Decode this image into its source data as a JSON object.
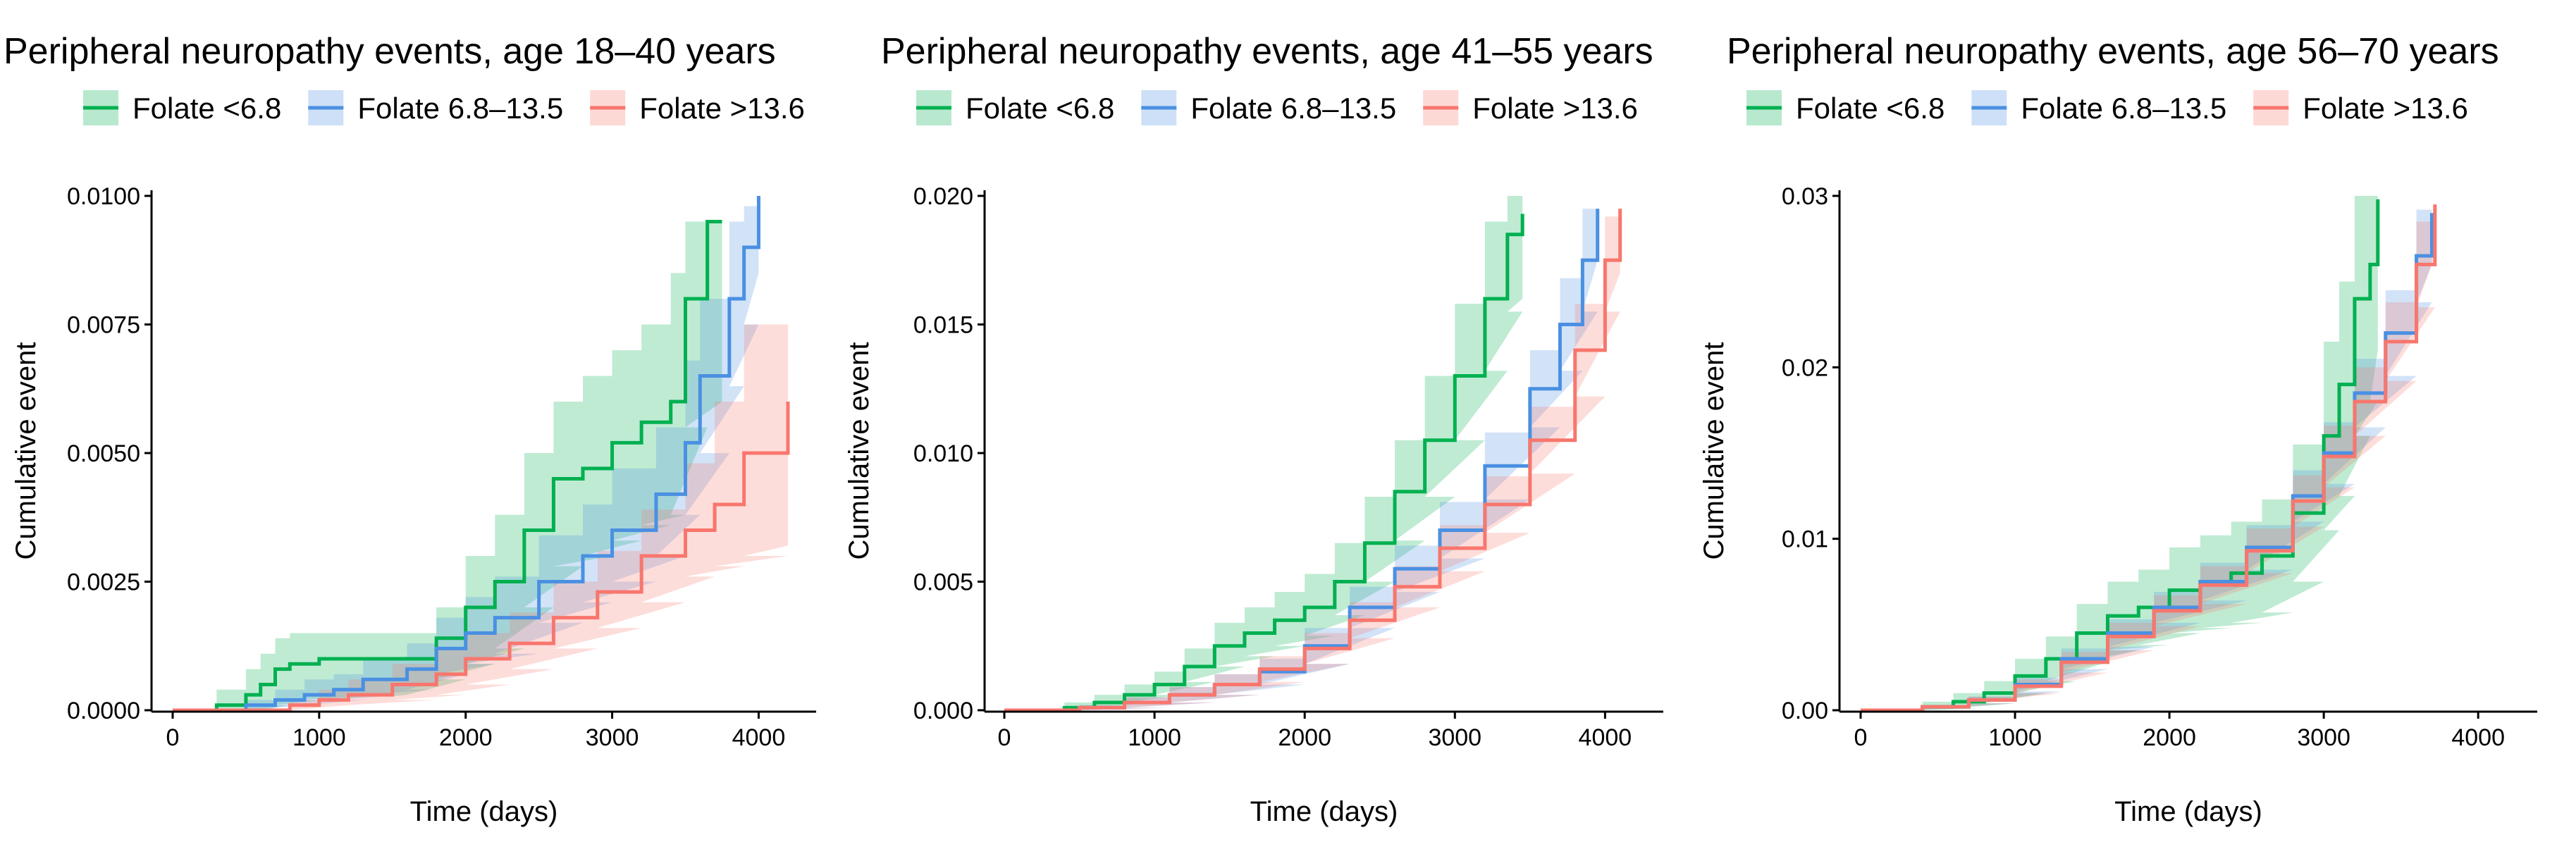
{
  "colors": {
    "folate_low": "#00b050",
    "folate_mid": "#4a90e2",
    "folate_high": "#f8766d"
  },
  "chart_data": [
    {
      "type": "line",
      "title": "Peripheral neuropathy events, age 18–40 years",
      "xlabel": "Time (days)",
      "ylabel": "Cumulative event",
      "xlim": [
        0,
        4200
      ],
      "ylim": [
        0,
        0.01
      ],
      "xticks": [
        0,
        1000,
        2000,
        3000,
        4000
      ],
      "xtick_labels": [
        "0",
        "1000",
        "2000",
        "3000",
        "4000"
      ],
      "yticks": [
        0,
        0.0025,
        0.005,
        0.0075,
        0.01
      ],
      "ytick_labels": [
        "0.0000",
        "0.0025",
        "0.0050",
        "0.0075",
        "0.0100"
      ],
      "series": [
        {
          "name": "Folate <6.8",
          "color": "#00b050",
          "x": [
            0,
            300,
            500,
            600,
            700,
            800,
            1000,
            1600,
            1800,
            2000,
            2200,
            2400,
            2600,
            2800,
            3000,
            3200,
            3400,
            3500,
            3650,
            3750
          ],
          "y": [
            0,
            0.0001,
            0.0003,
            0.0005,
            0.0008,
            0.0009,
            0.001,
            0.001,
            0.0014,
            0.002,
            0.0025,
            0.0035,
            0.0045,
            0.0047,
            0.0052,
            0.0056,
            0.006,
            0.008,
            0.0095,
            0.0095
          ],
          "upper": [
            0,
            0.0004,
            0.0008,
            0.0011,
            0.0014,
            0.0015,
            0.0015,
            0.0015,
            0.002,
            0.003,
            0.0038,
            0.005,
            0.006,
            0.0065,
            0.007,
            0.0075,
            0.0085,
            0.0095,
            0.0095,
            0.0095
          ],
          "lower": [
            0,
            0,
            0,
            0,
            0.0001,
            0.0002,
            0.0003,
            0.0003,
            0.0006,
            0.0009,
            0.0012,
            0.002,
            0.0028,
            0.003,
            0.0033,
            0.0036,
            0.0038,
            0.0055,
            0.006,
            0.006
          ]
        },
        {
          "name": "Folate 6.8–13.5",
          "color": "#4a90e2",
          "x": [
            0,
            500,
            700,
            900,
            1100,
            1300,
            1600,
            1800,
            2000,
            2200,
            2500,
            2800,
            3000,
            3300,
            3500,
            3600,
            3800,
            3900,
            4000
          ],
          "y": [
            0,
            0.0001,
            0.0002,
            0.0003,
            0.0004,
            0.0006,
            0.0008,
            0.0012,
            0.0015,
            0.0018,
            0.0025,
            0.003,
            0.0035,
            0.0042,
            0.0052,
            0.0065,
            0.008,
            0.009,
            0.01
          ],
          "upper": [
            0,
            0.0002,
            0.0004,
            0.0006,
            0.0007,
            0.001,
            0.0013,
            0.0018,
            0.0022,
            0.0026,
            0.0034,
            0.004,
            0.0047,
            0.0055,
            0.0068,
            0.008,
            0.0095,
            0.0098,
            0.01
          ],
          "lower": [
            0,
            0,
            0.0001,
            0.0001,
            0.0002,
            0.0003,
            0.0004,
            0.0007,
            0.0009,
            0.0011,
            0.0017,
            0.0021,
            0.0025,
            0.003,
            0.0038,
            0.005,
            0.0063,
            0.0075,
            0.0085
          ]
        },
        {
          "name": "Folate >13.6",
          "color": "#f8766d",
          "x": [
            0,
            800,
            1000,
            1200,
            1500,
            1800,
            2000,
            2300,
            2600,
            2900,
            3200,
            3500,
            3700,
            3900,
            4200
          ],
          "y": [
            0,
            0.0001,
            0.0002,
            0.0003,
            0.0005,
            0.0007,
            0.001,
            0.0013,
            0.0018,
            0.0023,
            0.003,
            0.0035,
            0.004,
            0.005,
            0.006
          ],
          "upper": [
            0,
            0.0002,
            0.0004,
            0.0006,
            0.0009,
            0.0012,
            0.0015,
            0.0019,
            0.0025,
            0.0031,
            0.0039,
            0.0048,
            0.006,
            0.0075,
            0.0088
          ],
          "lower": [
            0,
            0,
            0.0001,
            0.0001,
            0.0002,
            0.0003,
            0.0005,
            0.0008,
            0.0012,
            0.0016,
            0.0021,
            0.0026,
            0.0028,
            0.003,
            0.0032
          ]
        }
      ]
    },
    {
      "type": "line",
      "title": "Peripheral neuropathy events, age 41–55 years",
      "xlabel": "Time (days)",
      "ylabel": "Cumulative event",
      "xlim": [
        0,
        4200
      ],
      "ylim": [
        0,
        0.02
      ],
      "xticks": [
        0,
        1000,
        2000,
        3000,
        4000
      ],
      "xtick_labels": [
        "0",
        "1000",
        "2000",
        "3000",
        "4000"
      ],
      "yticks": [
        0,
        0.005,
        0.01,
        0.015,
        0.02
      ],
      "ytick_labels": [
        "0.000",
        "0.005",
        "0.010",
        "0.015",
        "0.020"
      ],
      "series": [
        {
          "name": "Folate <6.8",
          "color": "#00b050",
          "x": [
            0,
            400,
            600,
            800,
            1000,
            1200,
            1400,
            1600,
            1800,
            2000,
            2200,
            2400,
            2600,
            2800,
            3000,
            3200,
            3350,
            3450
          ],
          "y": [
            0,
            0.0001,
            0.0003,
            0.0006,
            0.001,
            0.0017,
            0.0025,
            0.003,
            0.0035,
            0.004,
            0.005,
            0.0065,
            0.0085,
            0.0105,
            0.013,
            0.016,
            0.0185,
            0.0193
          ],
          "upper": [
            0,
            0.0003,
            0.0006,
            0.001,
            0.0015,
            0.0024,
            0.0034,
            0.004,
            0.0046,
            0.0053,
            0.0065,
            0.0083,
            0.0105,
            0.013,
            0.0158,
            0.019,
            0.02,
            0.02
          ],
          "lower": [
            0,
            0,
            0.0001,
            0.0003,
            0.0006,
            0.0011,
            0.0017,
            0.0021,
            0.0025,
            0.0029,
            0.0037,
            0.005,
            0.0066,
            0.0083,
            0.0105,
            0.0132,
            0.0155,
            0.016
          ]
        },
        {
          "name": "Folate 6.8–13.5",
          "color": "#4a90e2",
          "x": [
            0,
            500,
            800,
            1100,
            1400,
            1700,
            2000,
            2300,
            2600,
            2900,
            3200,
            3500,
            3700,
            3850,
            3950
          ],
          "y": [
            0,
            0.0001,
            0.0003,
            0.0006,
            0.001,
            0.0015,
            0.0025,
            0.004,
            0.0055,
            0.007,
            0.0095,
            0.0125,
            0.015,
            0.0175,
            0.0195
          ],
          "upper": [
            0,
            0.0002,
            0.0005,
            0.0009,
            0.0014,
            0.002,
            0.0032,
            0.0048,
            0.0064,
            0.0081,
            0.0108,
            0.014,
            0.0168,
            0.0195,
            0.02
          ],
          "lower": [
            0,
            0,
            0.0001,
            0.0003,
            0.0006,
            0.001,
            0.0018,
            0.0032,
            0.0046,
            0.0059,
            0.0082,
            0.011,
            0.0132,
            0.0155,
            0.0175
          ]
        },
        {
          "name": "Folate >13.6",
          "color": "#f8766d",
          "x": [
            0,
            500,
            800,
            1100,
            1400,
            1700,
            2000,
            2300,
            2600,
            2900,
            3200,
            3500,
            3800,
            4000,
            4100
          ],
          "y": [
            0,
            0.0001,
            0.0003,
            0.0006,
            0.001,
            0.0016,
            0.0024,
            0.0035,
            0.0048,
            0.0063,
            0.008,
            0.0105,
            0.014,
            0.0175,
            0.0195
          ],
          "upper": [
            0,
            0.0002,
            0.0005,
            0.0009,
            0.0014,
            0.0021,
            0.003,
            0.0042,
            0.0056,
            0.0072,
            0.0091,
            0.0118,
            0.0158,
            0.0192,
            0.02
          ],
          "lower": [
            0,
            0,
            0.0001,
            0.0003,
            0.0006,
            0.0011,
            0.0018,
            0.0028,
            0.004,
            0.0054,
            0.0069,
            0.0092,
            0.0122,
            0.0155,
            0.017
          ]
        }
      ]
    },
    {
      "type": "line",
      "title": "Peripheral neuropathy events, age 56–70 years",
      "xlabel": "Time (days)",
      "ylabel": "Cumulative event",
      "xlim": [
        0,
        4200
      ],
      "ylim": [
        0,
        0.03
      ],
      "xticks": [
        0,
        1000,
        2000,
        3000,
        4000
      ],
      "xtick_labels": [
        "0",
        "1000",
        "2000",
        "3000",
        "4000"
      ],
      "yticks": [
        0,
        0.01,
        0.02,
        0.03
      ],
      "ytick_labels": [
        "0.00",
        "0.01",
        "0.02",
        "0.03"
      ],
      "series": [
        {
          "name": "Folate <6.8",
          "color": "#00b050",
          "x": [
            0,
            400,
            600,
            800,
            1000,
            1200,
            1400,
            1600,
            1800,
            2000,
            2200,
            2400,
            2600,
            2800,
            3000,
            3100,
            3200,
            3300,
            3350
          ],
          "y": [
            0,
            0.0002,
            0.0005,
            0.001,
            0.002,
            0.003,
            0.0045,
            0.0055,
            0.006,
            0.007,
            0.0075,
            0.008,
            0.009,
            0.0115,
            0.016,
            0.019,
            0.024,
            0.026,
            0.0298
          ],
          "upper": [
            0,
            0.0005,
            0.001,
            0.0017,
            0.003,
            0.0043,
            0.0062,
            0.0075,
            0.0082,
            0.0095,
            0.0102,
            0.011,
            0.0123,
            0.0155,
            0.0215,
            0.025,
            0.03,
            0.03,
            0.03
          ],
          "lower": [
            0,
            0,
            0.0001,
            0.0004,
            0.001,
            0.0017,
            0.0028,
            0.0035,
            0.0038,
            0.0045,
            0.0048,
            0.0051,
            0.0057,
            0.0075,
            0.0105,
            0.0125,
            0.016,
            0.018,
            0.021
          ]
        },
        {
          "name": "Folate 6.8–13.5",
          "color": "#4a90e2",
          "x": [
            0,
            400,
            700,
            1000,
            1300,
            1600,
            1900,
            2200,
            2500,
            2800,
            3000,
            3200,
            3400,
            3600,
            3700
          ],
          "y": [
            0,
            0.0002,
            0.0006,
            0.0015,
            0.003,
            0.0045,
            0.006,
            0.0075,
            0.0095,
            0.0125,
            0.015,
            0.0185,
            0.022,
            0.0265,
            0.029
          ],
          "upper": [
            0,
            0.0003,
            0.0008,
            0.0019,
            0.0036,
            0.0053,
            0.0069,
            0.0086,
            0.0108,
            0.014,
            0.0168,
            0.0205,
            0.0245,
            0.0292,
            0.03
          ],
          "lower": [
            0,
            0.0001,
            0.0004,
            0.0011,
            0.0024,
            0.0037,
            0.0051,
            0.0064,
            0.0082,
            0.011,
            0.0132,
            0.0165,
            0.0195,
            0.0238,
            0.026
          ]
        },
        {
          "name": "Folate >13.6",
          "color": "#f8766d",
          "x": [
            0,
            400,
            700,
            1000,
            1300,
            1600,
            1900,
            2200,
            2500,
            2800,
            3000,
            3200,
            3400,
            3600,
            3720
          ],
          "y": [
            0,
            0.0002,
            0.0006,
            0.0014,
            0.0028,
            0.0043,
            0.0058,
            0.0073,
            0.0093,
            0.0122,
            0.0148,
            0.018,
            0.0215,
            0.026,
            0.0295
          ],
          "upper": [
            0,
            0.0003,
            0.0008,
            0.0018,
            0.0034,
            0.0051,
            0.0067,
            0.0084,
            0.0106,
            0.0137,
            0.0166,
            0.02,
            0.0238,
            0.0285,
            0.03
          ],
          "lower": [
            0,
            0.0001,
            0.0004,
            0.001,
            0.0022,
            0.0035,
            0.0049,
            0.0062,
            0.008,
            0.0107,
            0.013,
            0.016,
            0.0192,
            0.0235,
            0.0265
          ]
        }
      ]
    }
  ]
}
